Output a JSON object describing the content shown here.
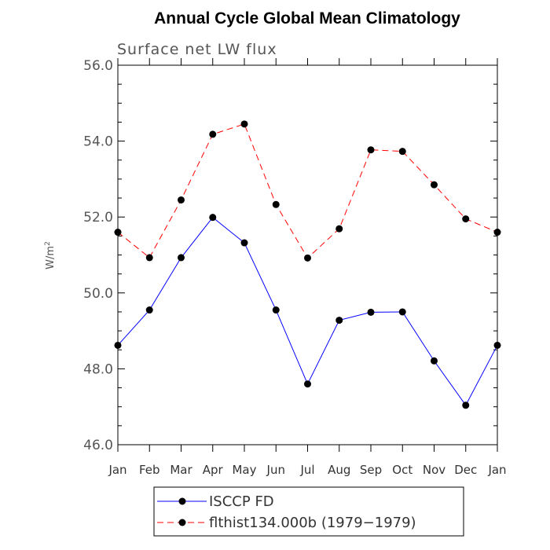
{
  "chart_data": {
    "type": "line",
    "title": "Annual Cycle Global Mean Climatology",
    "subtitle": "Surface net LW flux",
    "xlabel": "",
    "ylabel": "W/m",
    "ylabel_superscript": "2",
    "categories": [
      "Jan",
      "Feb",
      "Mar",
      "Apr",
      "May",
      "Jun",
      "Jul",
      "Aug",
      "Sep",
      "Oct",
      "Nov",
      "Dec",
      "Jan"
    ],
    "ylim": [
      46.0,
      56.0
    ],
    "yticks": [
      46.0,
      48.0,
      50.0,
      52.0,
      54.0,
      56.0
    ],
    "ytick_labels": [
      "46.0",
      "48.0",
      "50.0",
      "52.0",
      "54.0",
      "56.0"
    ],
    "legend_position": "bottom",
    "series": [
      {
        "name": "ISCCP FD",
        "color": "#0000ff",
        "line_style": "solid",
        "values": [
          48.62,
          49.55,
          50.93,
          51.99,
          51.32,
          49.55,
          47.6,
          49.28,
          49.49,
          49.5,
          48.21,
          47.04,
          48.62
        ]
      },
      {
        "name": "flthist134.000b (1979−1979)",
        "color": "#ff0000",
        "line_style": "dashed",
        "values": [
          51.6,
          50.93,
          52.45,
          54.18,
          54.45,
          52.33,
          50.92,
          51.69,
          53.77,
          53.73,
          52.85,
          51.95,
          51.6
        ]
      }
    ]
  }
}
